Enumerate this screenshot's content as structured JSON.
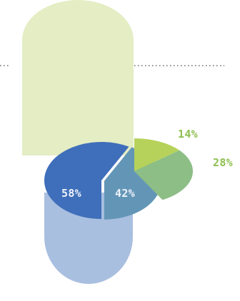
{
  "chart_data": [
    {
      "type": "pie",
      "slices": [
        {
          "label": "58%",
          "value": 58,
          "color": "#3f6fba"
        },
        {
          "label": "42%",
          "value": 42,
          "color": "#6396b6"
        }
      ]
    },
    {
      "type": "pie",
      "slices": [
        {
          "label": "14%",
          "value": 14,
          "color": "#b6d25a"
        },
        {
          "label": "28%",
          "value": 28,
          "color": "#8cbe86"
        }
      ]
    }
  ],
  "colors": {
    "top_cylinder": "#e4edc4",
    "bottom_cylinder": "#a9bfe0",
    "divider_dots": "#6e6e6e",
    "label_light": "#eef3fb",
    "label_outer": "#8dbf4e"
  }
}
